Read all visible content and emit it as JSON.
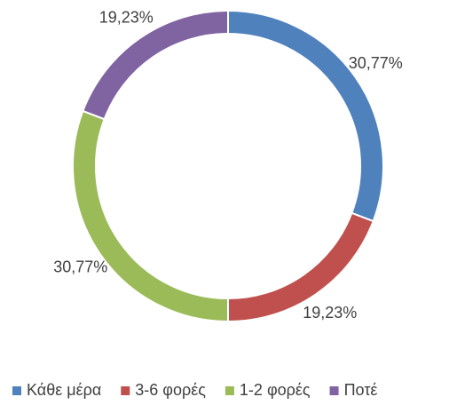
{
  "chart_data": {
    "type": "donut",
    "categories": [
      "Κάθε μέρα",
      "3-6 φορές",
      "1-2 φορές",
      "Ποτέ"
    ],
    "values": [
      30.77,
      19.23,
      30.77,
      19.23
    ],
    "value_labels": [
      "30,77%",
      "19,23%",
      "30,77%",
      "19,23%"
    ],
    "colors": [
      "#4f81bd",
      "#c0504d",
      "#9bbb59",
      "#8064a2"
    ],
    "legend": "bottom"
  }
}
